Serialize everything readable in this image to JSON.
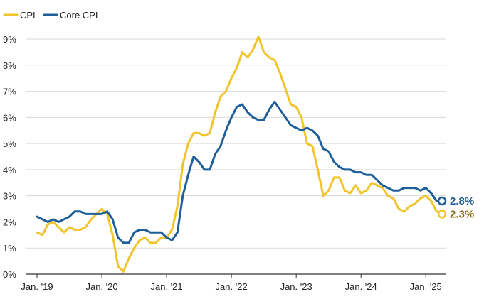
{
  "chart_data": {
    "type": "line",
    "title": "",
    "xlabel": "",
    "ylabel": "",
    "ylim": [
      0,
      9.3
    ],
    "xlim": [
      "2019-01",
      "2025-04"
    ],
    "grid": "horizontal",
    "legend_position": "top-left",
    "y_ticks": [
      "0%",
      "1%",
      "2%",
      "3%",
      "4%",
      "5%",
      "6%",
      "7%",
      "8%",
      "9%"
    ],
    "x_ticks": [
      {
        "date": "2019-01",
        "label": "Jan. '19"
      },
      {
        "date": "2020-01",
        "label": "Jan. '20"
      },
      {
        "date": "2021-01",
        "label": "Jan. '21"
      },
      {
        "date": "2022-01",
        "label": "Jan. '22"
      },
      {
        "date": "2023-01",
        "label": "Jan. '23"
      },
      {
        "date": "2024-01",
        "label": "Jan. '24"
      },
      {
        "date": "2025-01",
        "label": "Jan. '25"
      }
    ],
    "x": [
      "2019-01",
      "2019-02",
      "2019-03",
      "2019-04",
      "2019-05",
      "2019-06",
      "2019-07",
      "2019-08",
      "2019-09",
      "2019-10",
      "2019-11",
      "2019-12",
      "2020-01",
      "2020-02",
      "2020-03",
      "2020-04",
      "2020-05",
      "2020-06",
      "2020-07",
      "2020-08",
      "2020-09",
      "2020-10",
      "2020-11",
      "2020-12",
      "2021-01",
      "2021-02",
      "2021-03",
      "2021-04",
      "2021-05",
      "2021-06",
      "2021-07",
      "2021-08",
      "2021-09",
      "2021-10",
      "2021-11",
      "2021-12",
      "2022-01",
      "2022-02",
      "2022-03",
      "2022-04",
      "2022-05",
      "2022-06",
      "2022-07",
      "2022-08",
      "2022-09",
      "2022-10",
      "2022-11",
      "2022-12",
      "2023-01",
      "2023-02",
      "2023-03",
      "2023-04",
      "2023-05",
      "2023-06",
      "2023-07",
      "2023-08",
      "2023-09",
      "2023-10",
      "2023-11",
      "2023-12",
      "2024-01",
      "2024-02",
      "2024-03",
      "2024-04",
      "2024-05",
      "2024-06",
      "2024-07",
      "2024-08",
      "2024-09",
      "2024-10",
      "2024-11",
      "2024-12",
      "2025-01",
      "2025-02",
      "2025-03",
      "2025-04"
    ],
    "series": [
      {
        "name": "CPI",
        "color": "#f2c42c",
        "label_color": "#8a6a10",
        "end_label": "2.3%",
        "values": [
          1.6,
          1.5,
          1.9,
          2.0,
          1.8,
          1.6,
          1.8,
          1.7,
          1.7,
          1.8,
          2.1,
          2.3,
          2.5,
          2.3,
          1.5,
          0.3,
          0.1,
          0.6,
          1.0,
          1.3,
          1.4,
          1.2,
          1.2,
          1.4,
          1.4,
          1.7,
          2.6,
          4.2,
          5.0,
          5.4,
          5.4,
          5.3,
          5.4,
          6.2,
          6.8,
          7.0,
          7.5,
          7.9,
          8.5,
          8.3,
          8.6,
          9.1,
          8.5,
          8.3,
          8.2,
          7.7,
          7.1,
          6.5,
          6.4,
          6.0,
          5.0,
          4.9,
          4.0,
          3.0,
          3.2,
          3.7,
          3.7,
          3.2,
          3.1,
          3.4,
          3.1,
          3.2,
          3.5,
          3.4,
          3.3,
          3.0,
          2.9,
          2.5,
          2.4,
          2.6,
          2.7,
          2.9,
          3.0,
          2.8,
          2.4,
          2.3
        ]
      },
      {
        "name": "Core CPI",
        "color": "#1f5f99",
        "label_color": "#1f5f99",
        "end_label": "2.8%",
        "values": [
          2.2,
          2.1,
          2.0,
          2.1,
          2.0,
          2.1,
          2.2,
          2.4,
          2.4,
          2.3,
          2.3,
          2.3,
          2.3,
          2.4,
          2.1,
          1.4,
          1.2,
          1.2,
          1.6,
          1.7,
          1.7,
          1.6,
          1.6,
          1.6,
          1.4,
          1.3,
          1.6,
          3.0,
          3.8,
          4.5,
          4.3,
          4.0,
          4.0,
          4.6,
          4.9,
          5.5,
          6.0,
          6.4,
          6.5,
          6.2,
          6.0,
          5.9,
          5.9,
          6.3,
          6.6,
          6.3,
          6.0,
          5.7,
          5.6,
          5.5,
          5.6,
          5.5,
          5.3,
          4.8,
          4.7,
          4.3,
          4.1,
          4.0,
          4.0,
          3.9,
          3.9,
          3.8,
          3.8,
          3.6,
          3.4,
          3.3,
          3.2,
          3.2,
          3.3,
          3.3,
          3.3,
          3.2,
          3.3,
          3.1,
          2.8,
          2.8
        ]
      }
    ]
  }
}
